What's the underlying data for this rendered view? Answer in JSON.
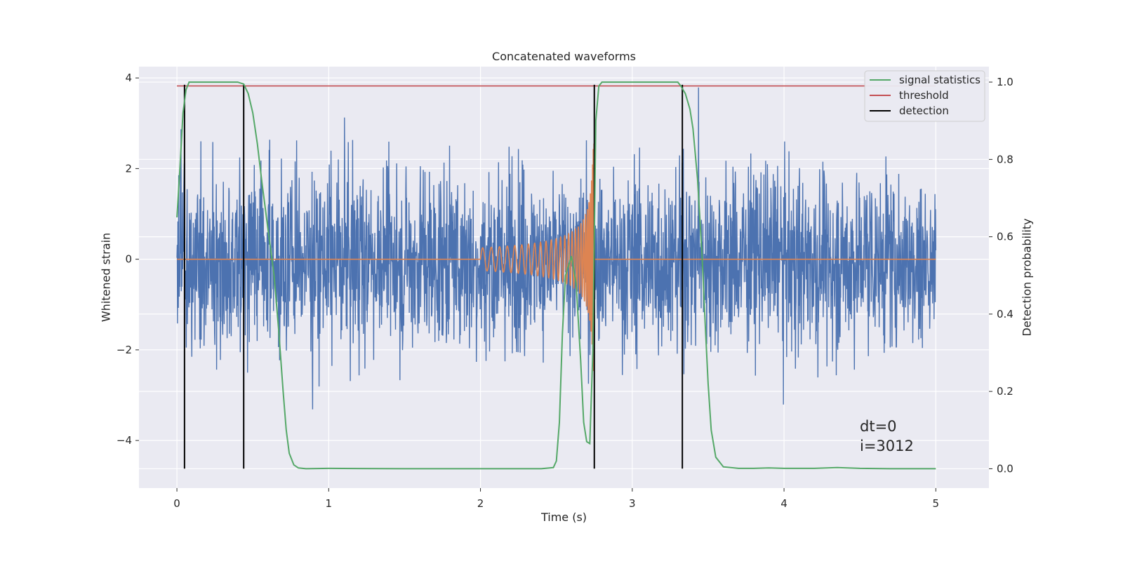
{
  "chart_data": {
    "type": "line",
    "title": "Concatenated waveforms",
    "xlabel": "Time (s)",
    "ylabel_left": "Whitened strain",
    "ylabel_right": "Detection probability",
    "xlim": [
      -0.25,
      5.35
    ],
    "ylim_left": [
      -5.05,
      4.25
    ],
    "ylim_right": [
      -0.05,
      1.04
    ],
    "xticks": [
      0,
      1,
      2,
      3,
      4,
      5
    ],
    "xtick_labels": [
      "0",
      "1",
      "2",
      "3",
      "4",
      "5"
    ],
    "yticks_left": [
      4,
      2,
      0,
      -2,
      -4
    ],
    "ytick_labels_left": [
      "4",
      "2",
      "0",
      "−2",
      "−4"
    ],
    "yticks_right": [
      1.0,
      0.8,
      0.6,
      0.4,
      0.2,
      0.0
    ],
    "ytick_labels_right": [
      "1.0",
      "0.8",
      "0.6",
      "0.4",
      "0.2",
      "0.0"
    ],
    "grid": true,
    "legend_position": "top-right",
    "colors": {
      "background": "#eaeaf2",
      "grid": "#ffffff",
      "strain": "#4c72b0",
      "template": "#dd8452",
      "signal_statistics": "#55a868",
      "threshold": "#c44e52",
      "detection": "#000000"
    },
    "series": [
      {
        "name": "signal statistics",
        "axis": "right",
        "x": [
          0,
          0.02,
          0.04,
          0.06,
          0.08,
          0.12,
          0.2,
          0.3,
          0.4,
          0.44,
          0.47,
          0.5,
          0.53,
          0.56,
          0.6,
          0.64,
          0.67,
          0.7,
          0.72,
          0.74,
          0.77,
          0.8,
          0.85,
          1.0,
          1.5,
          2.0,
          2.4,
          2.48,
          2.5,
          2.52,
          2.54,
          2.56,
          2.6,
          2.63,
          2.66,
          2.68,
          2.7,
          2.72,
          2.74,
          2.76,
          2.78,
          2.8,
          2.9,
          3.0,
          3.1,
          3.2,
          3.3,
          3.32,
          3.35,
          3.38,
          3.4,
          3.43,
          3.46,
          3.48,
          3.5,
          3.52,
          3.55,
          3.6,
          3.7,
          3.8,
          3.9,
          4.0,
          4.2,
          4.35,
          4.5,
          4.7,
          4.9,
          5.0
        ],
        "y": [
          0.65,
          0.78,
          0.92,
          0.98,
          1.0,
          1.0,
          1.0,
          1.0,
          1.0,
          0.995,
          0.97,
          0.92,
          0.84,
          0.74,
          0.62,
          0.5,
          0.36,
          0.2,
          0.1,
          0.04,
          0.01,
          0.002,
          0.0,
          0.001,
          0.0,
          0.0,
          0.0,
          0.003,
          0.02,
          0.12,
          0.35,
          0.5,
          0.55,
          0.48,
          0.28,
          0.12,
          0.07,
          0.065,
          0.3,
          0.9,
          0.99,
          1.0,
          1.0,
          1.0,
          1.0,
          1.0,
          1.0,
          0.99,
          0.97,
          0.93,
          0.88,
          0.75,
          0.55,
          0.38,
          0.22,
          0.1,
          0.03,
          0.005,
          0.001,
          0.001,
          0.002,
          0.001,
          0.001,
          0.003,
          0.001,
          0.0,
          0.0,
          0.0
        ]
      },
      {
        "name": "threshold",
        "axis": "right",
        "x": [
          0,
          5
        ],
        "y": [
          0.99,
          0.99
        ]
      },
      {
        "name": "detection",
        "axis": "left",
        "x_positions": [
          0.05,
          0.44,
          2.75,
          3.33
        ],
        "y_range": [
          -4.62,
          3.85
        ]
      },
      {
        "name": "",
        "axis": "left",
        "description_key": "strain",
        "x_range": [
          0,
          5
        ],
        "amplitude_typical": 1.3,
        "amplitude_peak": 3.85
      },
      {
        "name": "",
        "axis": "left",
        "description_key": "template",
        "start": 2.0,
        "merger": 2.75,
        "amplitude_start": 0.25,
        "amplitude_peak": 2.6
      }
    ],
    "annotations": [
      "dt=0",
      "i=3012"
    ]
  }
}
